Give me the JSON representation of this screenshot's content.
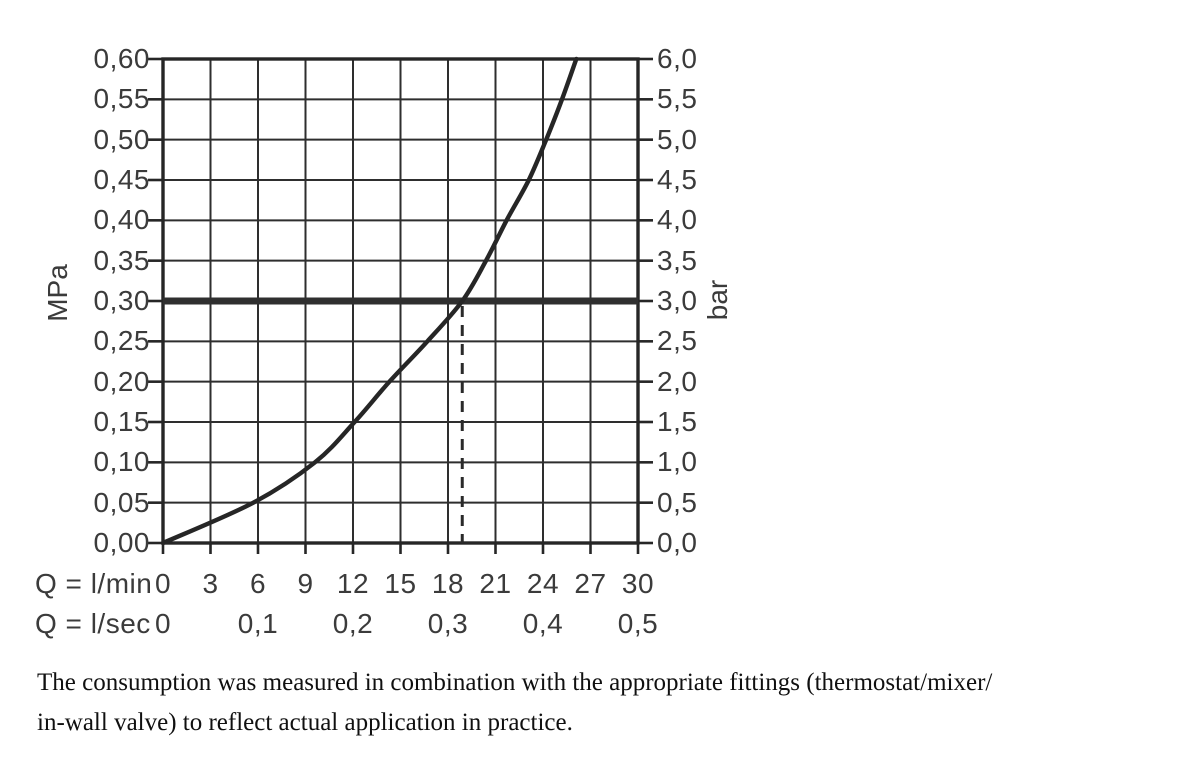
{
  "chart": {
    "y_left": {
      "unit": "MPa",
      "ticks": [
        "0,60",
        "0,55",
        "0,50",
        "0,45",
        "0,40",
        "0,35",
        "0,30",
        "0,25",
        "0,20",
        "0,15",
        "0,10",
        "0,05",
        "0,00"
      ]
    },
    "y_right": {
      "unit": "bar",
      "ticks": [
        "6,0",
        "5,5",
        "5,0",
        "4,5",
        "4,0",
        "3,5",
        "3,0",
        "2,5",
        "2,0",
        "1,5",
        "1,0",
        "0,5",
        "0,0"
      ]
    },
    "x_lmin": {
      "caption": "Q = l/min",
      "ticks": [
        "0",
        "3",
        "6",
        "9",
        "12",
        "15",
        "18",
        "21",
        "24",
        "27",
        "30"
      ]
    },
    "x_lsec": {
      "caption": "Q = l/sec",
      "ticks": [
        "0",
        "0,1",
        "0,2",
        "0,3",
        "0,4",
        "0,5"
      ]
    }
  },
  "chart_data": {
    "type": "line",
    "title": "",
    "xlabel": "Q = l/min",
    "xlabel_secondary": "Q = l/sec",
    "ylabel_left": "MPa",
    "ylabel_right": "bar",
    "xlim": [
      0,
      30
    ],
    "x_tick_step_lmin": 3,
    "x_tick_step_lsec_lmin_equiv": 6,
    "ylim_mpa": [
      0,
      0.6
    ],
    "ylim_bar": [
      0,
      6
    ],
    "y_tick_step_mpa": 0.05,
    "grid": true,
    "series": [
      {
        "name": "flow-rate-curve",
        "points_q_lmin_vs_mpa": [
          [
            0,
            0.0
          ],
          [
            5.7,
            0.05
          ],
          [
            9.6,
            0.1
          ],
          [
            12.1,
            0.15
          ],
          [
            14.3,
            0.2
          ],
          [
            16.7,
            0.25
          ],
          [
            18.9,
            0.3
          ],
          [
            20.4,
            0.35
          ],
          [
            21.7,
            0.4
          ],
          [
            23.1,
            0.45
          ],
          [
            24.2,
            0.5
          ],
          [
            25.2,
            0.55
          ],
          [
            26.1,
            0.6
          ]
        ]
      }
    ],
    "reference_line": {
      "mpa": 0.3,
      "bar": 3.0
    },
    "dashed_marker": {
      "q_lmin": 18.9,
      "from_mpa": 0.3,
      "to_mpa": 0.0
    },
    "colors": {
      "line": "#262626",
      "grid": "#2e2e2e",
      "reference": "#2f2f2f",
      "label": "#3b3b3b"
    }
  },
  "footer": {
    "line1": "The consumption was measured in combination with the appropriate fittings (thermostat/mixer/",
    "line2": "in-wall valve) to reflect actual application in practice."
  }
}
